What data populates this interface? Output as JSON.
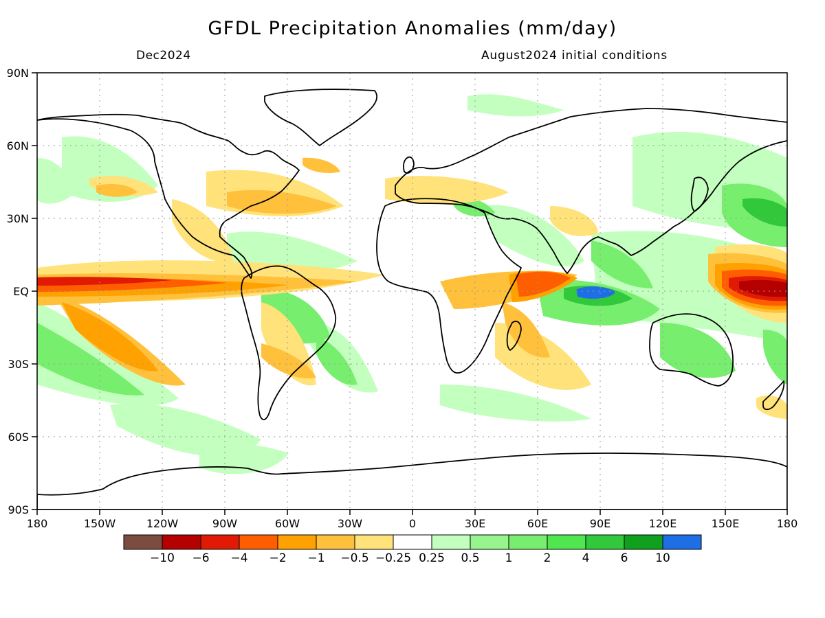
{
  "title": "GFDL Precipitation Anomalies (mm/day)",
  "month_label": "Dec2024",
  "init_label": "August2024 initial conditions",
  "lat_labels": [
    "90N",
    "60N",
    "30N",
    "EQ",
    "30S",
    "60S",
    "90S"
  ],
  "lon_labels": [
    "180",
    "150W",
    "120W",
    "90W",
    "60W",
    "30W",
    "0",
    "30E",
    "60E",
    "90E",
    "120E",
    "150E",
    "180"
  ],
  "colorbar": {
    "colors": [
      "#7a4d40",
      "#b50000",
      "#e01a05",
      "#ff5e00",
      "#ffa100",
      "#ffc03c",
      "#ffe27a",
      "#ffffff",
      "#c3ffbe",
      "#96f58c",
      "#78ee6e",
      "#50e650",
      "#32c83c",
      "#0fa01e",
      "#1e6ee6"
    ],
    "labels": [
      "−10",
      "−6",
      "−4",
      "−2",
      "−1",
      "−0.5",
      "−0.25",
      "0.25",
      "0.5",
      "1",
      "2",
      "4",
      "6",
      "10"
    ]
  }
}
